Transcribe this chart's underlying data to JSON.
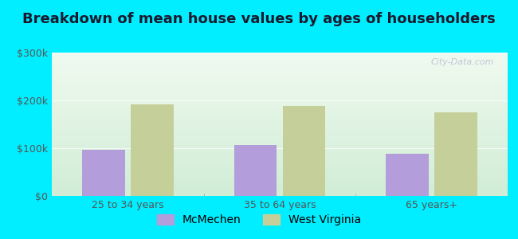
{
  "title": "Breakdown of mean house values by ages of householders",
  "categories": [
    "25 to 34 years",
    "35 to 64 years",
    "65 years+"
  ],
  "mcmechen_values": [
    97000,
    107000,
    88000
  ],
  "wv_values": [
    191000,
    189000,
    175000
  ],
  "mcmechen_color": "#b39ddb",
  "wv_color": "#c5cf9a",
  "ylim": [
    0,
    300000
  ],
  "ytick_labels": [
    "$0",
    "$100k",
    "$200k",
    "$300k"
  ],
  "legend_mcmechen": "McMechen",
  "legend_wv": "West Virginia",
  "background_outer": "#00eeff",
  "bar_width": 0.28,
  "title_fontsize": 13,
  "tick_fontsize": 9,
  "legend_fontsize": 10
}
